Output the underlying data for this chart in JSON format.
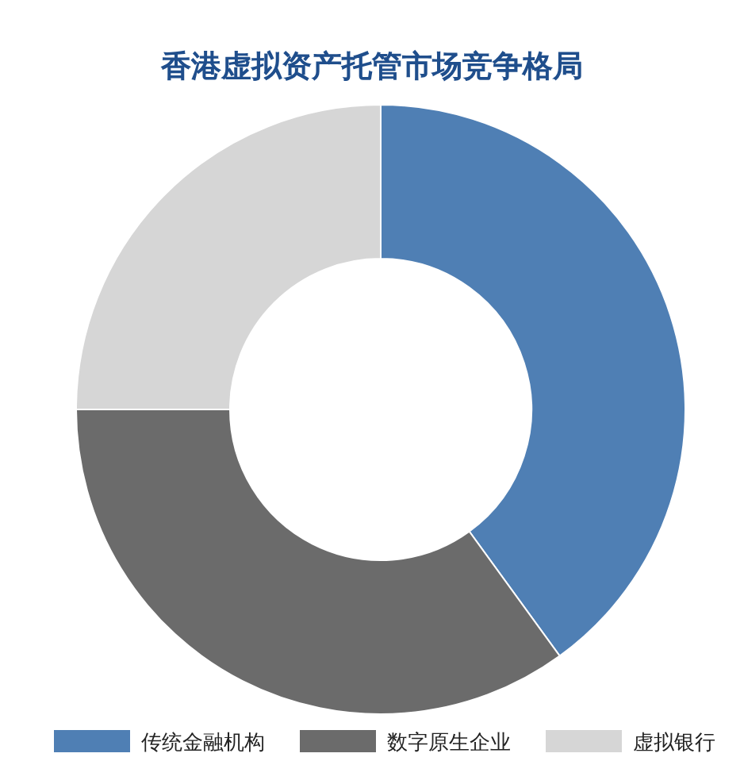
{
  "chart_data": {
    "type": "donut",
    "title": "香港虚拟资产托管市场竞争格局",
    "categories": [
      "传统金融机构",
      "数字原生企业",
      "虚拟银行"
    ],
    "values": [
      40,
      35,
      25
    ],
    "colors": [
      "#4f7fb4",
      "#6b6b6b",
      "#d6d6d6"
    ],
    "legend": "bottom"
  }
}
